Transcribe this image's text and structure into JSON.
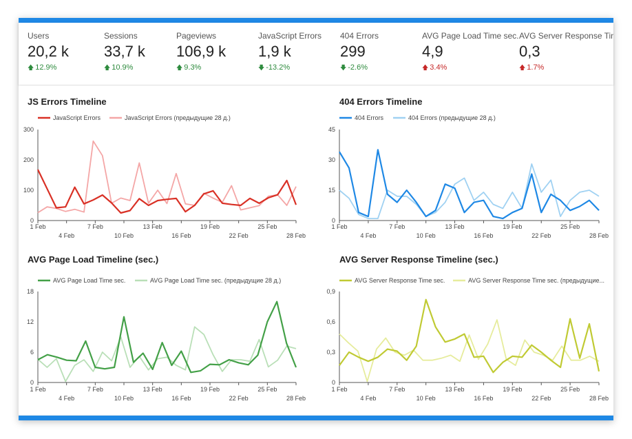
{
  "kpis": [
    {
      "label": "Users",
      "value": "20,2 k",
      "delta": "12.9%",
      "direction": "up",
      "tone": "good"
    },
    {
      "label": "Sessions",
      "value": "33,7 k",
      "delta": "10.9%",
      "direction": "up",
      "tone": "good"
    },
    {
      "label": "Pageviews",
      "value": "106,9 k",
      "delta": "9.3%",
      "direction": "up",
      "tone": "good"
    },
    {
      "label": "JavaScript Errors",
      "value": "1,9 k",
      "delta": "-13.2%",
      "direction": "down",
      "tone": "good"
    },
    {
      "label": "404 Errors",
      "value": "299",
      "delta": "-2.6%",
      "direction": "down",
      "tone": "good"
    },
    {
      "label": "AVG Page Load Time sec.",
      "value": "4,9",
      "delta": "3.4%",
      "direction": "up",
      "tone": "bad"
    },
    {
      "label": "AVG Server Response Time",
      "value": "0,3",
      "delta": "1.7%",
      "direction": "up",
      "tone": "bad"
    }
  ],
  "colors": {
    "accent_bar": "#1e88e5",
    "good": "#2e8b3e",
    "bad": "#c62828"
  },
  "chart_data": [
    {
      "type": "line",
      "title": "JS Errors Timeline",
      "ylim": [
        0,
        300
      ],
      "y_ticks": [
        "0",
        "100",
        "200",
        "300"
      ],
      "y_tick_values": [
        0,
        100,
        200,
        300
      ],
      "x_tick_labels": [
        "1 Feb",
        "4 Feb",
        "7 Feb",
        "10 Feb",
        "13 Feb",
        "16 Feb",
        "19 Feb",
        "22 Feb",
        "25 Feb",
        "28 Feb"
      ],
      "series": [
        {
          "name": "JavaScript Errors",
          "color": "#d93025",
          "values": [
            168,
            105,
            42,
            45,
            110,
            55,
            68,
            84,
            58,
            25,
            33,
            72,
            50,
            66,
            70,
            73,
            29,
            50,
            88,
            98,
            57,
            53,
            50,
            73,
            57,
            75,
            85,
            132,
            52
          ]
        },
        {
          "name": "JavaScript Errors (предыдущие 28 д.)",
          "color": "#f4a6a6",
          "values": [
            26,
            45,
            40,
            30,
            37,
            28,
            262,
            214,
            57,
            74,
            66,
            190,
            57,
            100,
            56,
            155,
            55,
            50,
            90,
            74,
            60,
            115,
            35,
            42,
            49,
            80,
            85,
            50,
            112
          ]
        }
      ]
    },
    {
      "type": "line",
      "title": "404 Errors Timeline",
      "ylim": [
        0,
        45
      ],
      "y_ticks": [
        "0",
        "15",
        "30",
        "45"
      ],
      "y_tick_values": [
        0,
        15,
        30,
        45
      ],
      "x_tick_labels": [
        "1 Feb",
        "4 Feb",
        "7 Feb",
        "10 Feb",
        "13 Feb",
        "16 Feb",
        "19 Feb",
        "22 Feb",
        "25 Feb",
        "28 Feb"
      ],
      "series": [
        {
          "name": "404 Errors",
          "color": "#1e88e5",
          "values": [
            34,
            26,
            4,
            2,
            35,
            13,
            9,
            15,
            9,
            2,
            5,
            18,
            16,
            4,
            9,
            10,
            2,
            1,
            4,
            6,
            23,
            4,
            13,
            10,
            5,
            7,
            10,
            5
          ]
        },
        {
          "name": "404 Errors (предыдущие 28 д.)",
          "color": "#9fd1f2",
          "values": [
            15,
            11,
            3,
            1,
            1,
            15,
            12,
            12,
            8,
            2,
            4,
            9,
            18,
            21,
            10,
            14,
            8,
            6,
            14,
            6,
            28,
            14,
            20,
            2,
            10,
            14,
            15,
            12
          ]
        }
      ]
    },
    {
      "type": "line",
      "title": "AVG Page Load Timeline (sec.)",
      "ylim": [
        0,
        18
      ],
      "y_ticks": [
        "0",
        "6",
        "12",
        "18"
      ],
      "y_tick_values": [
        0,
        6,
        12,
        18
      ],
      "x_tick_labels": [
        "1 Feb",
        "4 Feb",
        "7 Feb",
        "10 Feb",
        "13 Feb",
        "16 Feb",
        "19 Feb",
        "22 Feb",
        "25 Feb",
        "28 Feb"
      ],
      "series": [
        {
          "name": "AVG Page Load Time sec.",
          "color": "#43a047",
          "values": [
            4.5,
            5.5,
            5,
            4.4,
            4.3,
            8.2,
            3,
            2.7,
            3,
            13,
            4,
            5.8,
            2.6,
            7.9,
            3.4,
            6.2,
            2,
            2.3,
            3.6,
            3.5,
            4.5,
            3.9,
            3.5,
            5.4,
            12,
            16,
            7.8,
            3
          ]
        },
        {
          "name": "AVG Page Load Time sec. (предыдущие 28 д.)",
          "color": "#b9dfb7",
          "values": [
            4.6,
            3,
            4.7,
            0.2,
            3.4,
            4.5,
            2.2,
            6,
            4.3,
            9,
            3,
            5.2,
            2.5,
            4.7,
            5,
            3.4,
            2.5,
            11,
            9.5,
            5.5,
            2.2,
            4.5,
            4.5,
            4.2,
            8.5,
            3.1,
            4.4,
            7.2,
            6.7
          ]
        }
      ]
    },
    {
      "type": "line",
      "title": "AVG Server Response Timeline (sec.)",
      "ylim": [
        0,
        0.9
      ],
      "y_ticks": [
        "0",
        "0,3",
        "0,6",
        "0,9"
      ],
      "y_tick_values": [
        0,
        0.3,
        0.6,
        0.9
      ],
      "x_tick_labels": [
        "1 Feb",
        "4 Feb",
        "7 Feb",
        "10 Feb",
        "13 Feb",
        "16 Feb",
        "19 Feb",
        "22 Feb",
        "25 Feb",
        "28 Feb"
      ],
      "series": [
        {
          "name": "AVG Server Response Time sec.",
          "color": "#c0ca33",
          "values": [
            0.17,
            0.3,
            0.25,
            0.21,
            0.25,
            0.33,
            0.31,
            0.22,
            0.36,
            0.82,
            0.55,
            0.4,
            0.43,
            0.48,
            0.25,
            0.26,
            0.1,
            0.2,
            0.26,
            0.25,
            0.37,
            0.3,
            0.22,
            0.15,
            0.63,
            0.24,
            0.58,
            0.11
          ]
        },
        {
          "name": "AVG Server Response Time sec. (предыдущие...",
          "color": "#e6ec9c",
          "values": [
            0.48,
            0.39,
            0.31,
            0.01,
            0.33,
            0.44,
            0.3,
            0.27,
            0.32,
            0.22,
            0.22,
            0.24,
            0.27,
            0.21,
            0.47,
            0.23,
            0.38,
            0.62,
            0.23,
            0.17,
            0.42,
            0.3,
            0.27,
            0.22,
            0.36,
            0.22,
            0.22,
            0.26,
            0.21
          ]
        }
      ]
    }
  ]
}
